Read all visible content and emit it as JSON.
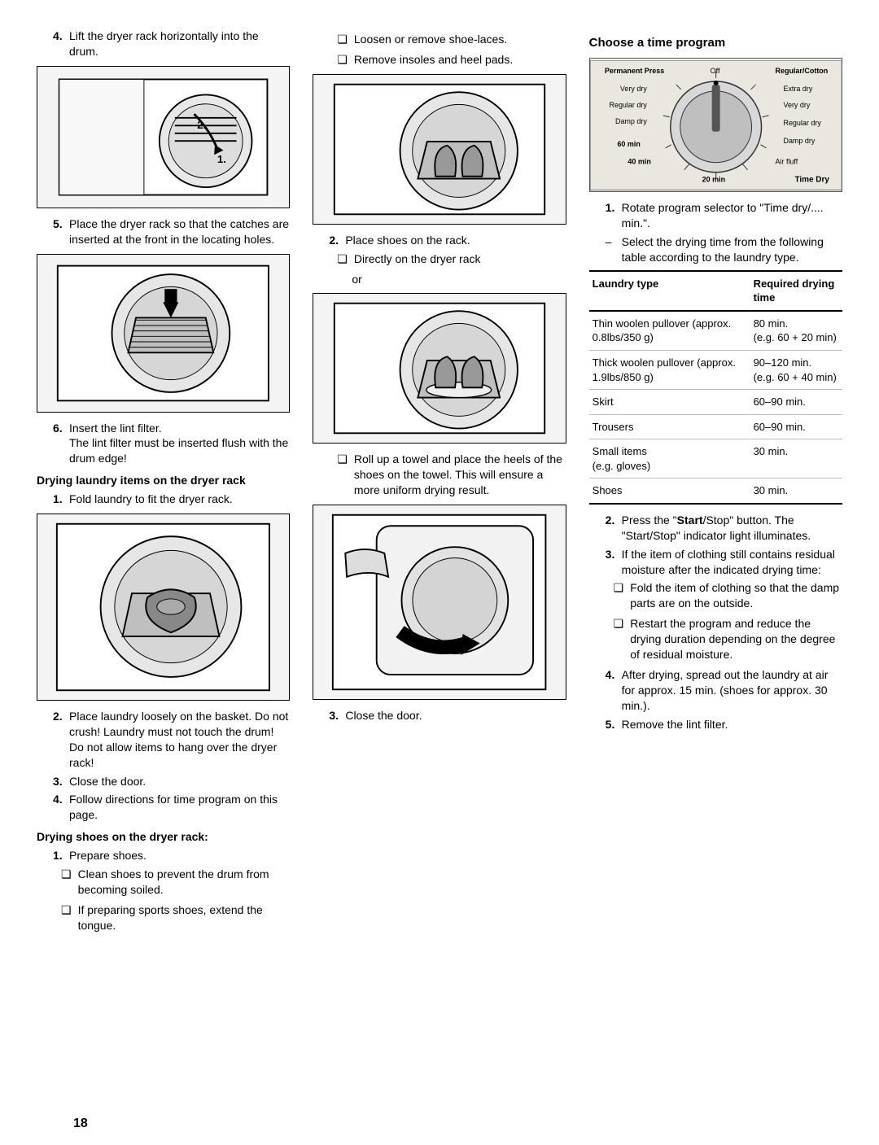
{
  "page_number": "18",
  "col1": {
    "step4": "Lift the dryer rack horizontally into the drum.",
    "fig1_alt": "Dryer with door open, rack being inserted horizontally — arrows 1 and 2",
    "step5": "Place the dryer rack so that the catches are inserted at the front in the locating holes.",
    "fig2_alt": "Dryer rack seated in drum, downward arrow",
    "step6a": "Insert the lint filter.",
    "step6b": "The lint filter must be inserted flush with the drum edge!",
    "heading_laundry": "Drying laundry items on the dryer rack",
    "l_step1": "Fold laundry to fit the dryer rack.",
    "fig3_alt": "Folded laundry placed on rack inside drum",
    "l_step2": "Place laundry loosely on the basket. Do not crush! Laundry must not touch the drum! Do not allow items to hang over the dryer rack!",
    "l_step3": "Close the door.",
    "l_step4": "Follow directions for time program on this page.",
    "heading_shoes": "Drying shoes on the dryer rack:",
    "s_step1": "Prepare shoes.",
    "s_check1": "Clean shoes to prevent the drum from becoming soiled.",
    "s_check2": "If preparing sports shoes, extend the tongue."
  },
  "col2": {
    "c1": "Loosen or remove shoe-laces.",
    "c2": "Remove insoles and heel pads.",
    "fig4_alt": "Shoes resting on rack inside drum",
    "step2": "Place shoes on the rack.",
    "chk_direct": "Directly on the dryer rack",
    "or": "or",
    "fig5_alt": "Shoes on rolled towel on rack inside drum",
    "chk_towel": "Roll up a towel and place the heels of the shoes on the towel. This will ensure a more uniform drying result.",
    "fig6_alt": "Closing the dryer door — hand with arrow",
    "step3": "Close the door."
  },
  "col3": {
    "heading_time": "Choose a time program",
    "dial": {
      "alt": "Program selector dial",
      "top_left": "Permanent Press",
      "off": "Off",
      "top_right": "Regular/Cotton",
      "left": [
        "Very dry",
        "Regular dry",
        "Damp dry",
        "60 min",
        "40 min"
      ],
      "bottom": "20 min",
      "right": [
        "Extra dry",
        "Very dry",
        "Regular dry",
        "Damp dry",
        "Air fluff"
      ],
      "bottom_right": "Time Dry"
    },
    "t_step1": "Rotate program selector to \"Time dry/.... min.\".",
    "t_dash": "Select the drying time from the following table according to the laundry type.",
    "table": {
      "h1": "Laundry type",
      "h2": "Required drying time",
      "rows": [
        {
          "a": "Thin woolen pullover (approx. 0.8lbs/350 g)",
          "b": "80 min.\n(e.g. 60 + 20 min)"
        },
        {
          "a": "Thick woolen pullover (approx. 1.9lbs/850 g)",
          "b": "90–120 min.\n(e.g. 60 + 40 min)"
        },
        {
          "a": "Skirt",
          "b": "60–90 min."
        },
        {
          "a": "Trousers",
          "b": "60–90 min."
        },
        {
          "a": "Small items\n(e.g. gloves)",
          "b": "30 min."
        },
        {
          "a": "Shoes",
          "b": "30 min."
        }
      ]
    },
    "t_step2_pre": "Press the \"",
    "t_step2_bold": "Start",
    "t_step2_post": "/Stop\" button. The \"Start/Stop\" indicator light illuminates.",
    "t_step3": "If the item of clothing still contains residual moisture after the indicated drying time:",
    "t_chk1": "Fold the item of clothing so that the damp parts are on the outside.",
    "t_chk2": "Restart the program and reduce the drying duration depending on the degree of residual moisture.",
    "t_step4": "After drying, spread out the laundry at air for approx. 15 min. (shoes for approx. 30 min.).",
    "t_step5": "Remove the lint filter."
  }
}
